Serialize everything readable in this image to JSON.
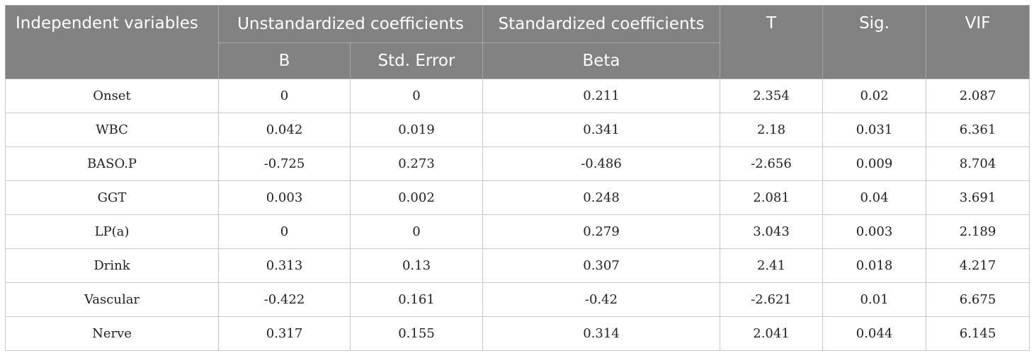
{
  "table": {
    "headers": {
      "variables": "Independent variables",
      "unstandardized": "Unstandardized coefficients",
      "standardized": "Standardized coefficients",
      "t": "T",
      "sig": "Sig.",
      "vif": "VIF",
      "b": "B",
      "std_error": "Std. Error",
      "beta": "Beta"
    },
    "rows": [
      {
        "variable": "Onset",
        "b": "0",
        "std_error": "0",
        "beta": "0.211",
        "t": "2.354",
        "sig": "0.02",
        "vif": "2.087"
      },
      {
        "variable": "WBC",
        "b": "0.042",
        "std_error": "0.019",
        "beta": "0.341",
        "t": "2.18",
        "sig": "0.031",
        "vif": "6.361"
      },
      {
        "variable": "BASO.P",
        "b": "-0.725",
        "std_error": "0.273",
        "beta": "-0.486",
        "t": "-2.656",
        "sig": "0.009",
        "vif": "8.704"
      },
      {
        "variable": "GGT",
        "b": "0.003",
        "std_error": "0.002",
        "beta": "0.248",
        "t": "2.081",
        "sig": "0.04",
        "vif": "3.691"
      },
      {
        "variable": "LP(a)",
        "b": "0",
        "std_error": "0",
        "beta": "0.279",
        "t": "3.043",
        "sig": "0.003",
        "vif": "2.189"
      },
      {
        "variable": "Drink",
        "b": "0.313",
        "std_error": "0.13",
        "beta": "0.307",
        "t": "2.41",
        "sig": "0.018",
        "vif": "4.217"
      },
      {
        "variable": "Vascular",
        "b": "-0.422",
        "std_error": "0.161",
        "beta": "-0.42",
        "t": "-2.621",
        "sig": "0.01",
        "vif": "6.675"
      },
      {
        "variable": "Nerve",
        "b": "0.317",
        "std_error": "0.155",
        "beta": "0.314",
        "t": "2.041",
        "sig": "0.044",
        "vif": "6.145"
      }
    ]
  }
}
